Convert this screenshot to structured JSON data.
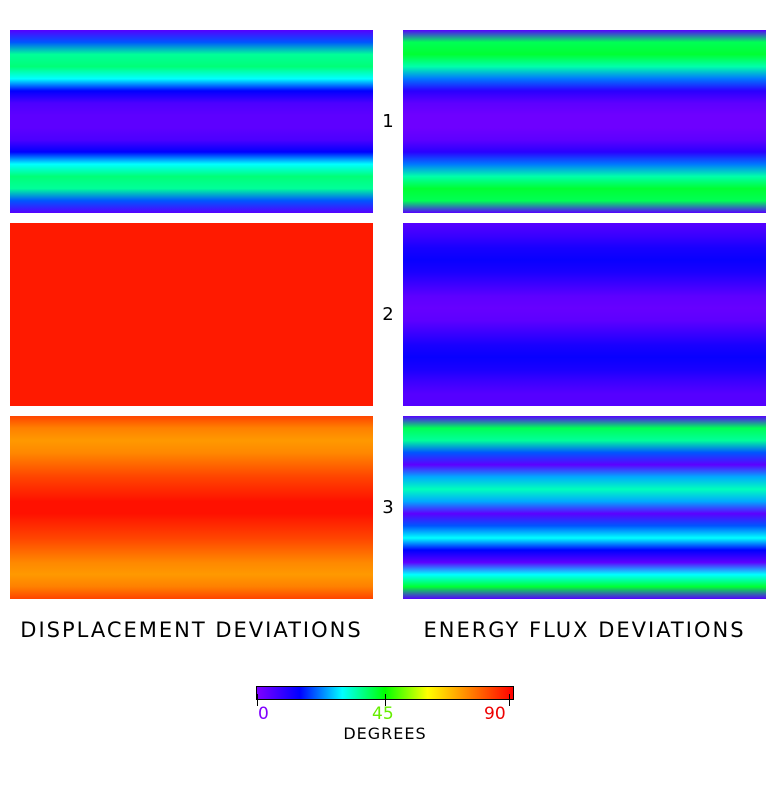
{
  "chart_data": {
    "type": "heatmap",
    "columns": [
      {
        "title": "DISPLACEMENT DEVIATIONS"
      },
      {
        "title": "ENERGY FLUX DEVIATIONS"
      }
    ],
    "rows": [
      "1",
      "2",
      "3"
    ],
    "colormap": {
      "min": 0,
      "max": 90,
      "ticks": [
        "0",
        "45",
        "90"
      ],
      "label": "DEGREES",
      "stops": [
        "#7f00ff",
        "#0000ff",
        "#00ffff",
        "#00ff00",
        "#ffff00",
        "#ff8000",
        "#ff0000"
      ]
    },
    "panels": [
      {
        "row": "1",
        "column": "DISPLACEMENT DEVIATIONS",
        "profile_degrees": [
          5,
          20,
          36,
          38,
          30,
          15,
          6,
          4,
          4,
          6,
          15,
          30,
          38,
          36,
          20,
          5
        ]
      },
      {
        "row": "1",
        "column": "ENERGY FLUX DEVIATIONS",
        "profile_degrees": [
          5,
          40,
          42,
          35,
          22,
          10,
          4,
          2,
          2,
          4,
          10,
          22,
          35,
          42,
          40,
          5
        ]
      },
      {
        "row": "2",
        "column": "DISPLACEMENT DEVIATIONS",
        "profile_degrees": [
          87,
          87,
          87,
          87,
          87,
          87,
          87,
          87,
          87,
          87,
          87,
          87,
          87,
          87,
          87,
          87
        ]
      },
      {
        "row": "2",
        "column": "ENERGY FLUX DEVIATIONS",
        "profile_degrees": [
          5,
          8,
          12,
          14,
          12,
          8,
          4,
          3,
          4,
          8,
          12,
          14,
          12,
          8,
          5,
          5
        ]
      },
      {
        "row": "3",
        "column": "DISPLACEMENT DEVIATIONS",
        "profile_degrees": [
          82,
          75,
          72,
          74,
          78,
          82,
          85,
          88,
          88,
          85,
          82,
          78,
          74,
          72,
          75,
          82
        ]
      },
      {
        "row": "3",
        "column": "ENERGY FLUX DEVIATIONS",
        "profile_degrees": [
          5,
          40,
          36,
          20,
          4,
          25,
          34,
          25,
          4,
          20,
          30,
          15,
          4,
          30,
          42,
          5
        ]
      }
    ]
  }
}
